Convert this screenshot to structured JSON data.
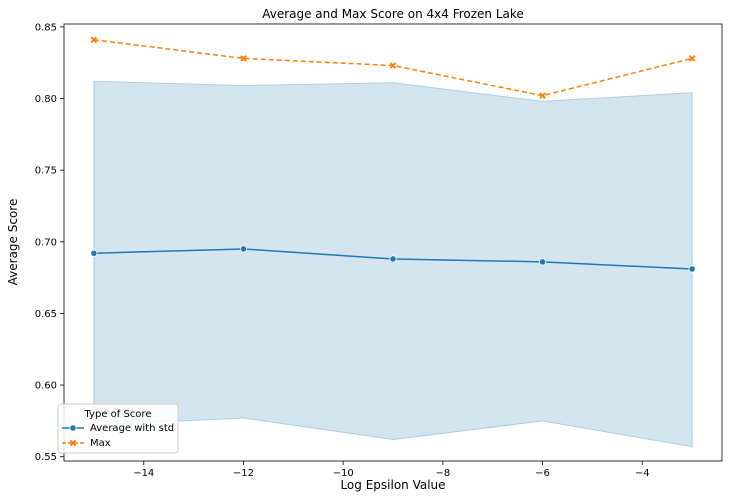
{
  "chart_data": {
    "type": "line",
    "title": "Average and Max Score on 4x4 Frozen Lake",
    "xlabel": "Log Epsilon Value",
    "ylabel": "Average Score",
    "xlim": [
      -15.6,
      -2.4
    ],
    "ylim": [
      0.547,
      0.852
    ],
    "x_ticks": [
      -14,
      -12,
      -10,
      -8,
      -6,
      -4
    ],
    "y_ticks": [
      0.55,
      0.6,
      0.65,
      0.7,
      0.75,
      0.8,
      0.85
    ],
    "y_tick_labels": [
      "0.55",
      "0.60",
      "0.65",
      "0.70",
      "0.75",
      "0.80",
      "0.85"
    ],
    "x": [
      -15,
      -12,
      -9,
      -6,
      -3
    ],
    "series": [
      {
        "name": "Average with std",
        "values": [
          0.692,
          0.695,
          0.688,
          0.686,
          0.681
        ],
        "band_upper": [
          0.812,
          0.809,
          0.811,
          0.798,
          0.804
        ],
        "band_lower": [
          0.572,
          0.577,
          0.562,
          0.575,
          0.557
        ],
        "color": "#1f77b4",
        "band_color": "#aecde2",
        "marker": "circle",
        "linestyle": "solid"
      },
      {
        "name": "Max",
        "values": [
          0.841,
          0.828,
          0.823,
          0.802,
          0.828
        ],
        "color": "#ff7f0e",
        "marker": "x",
        "linestyle": "dashed"
      }
    ],
    "legend": {
      "title": "Type of Score",
      "placement": "bottom-left"
    },
    "grid": false
  }
}
